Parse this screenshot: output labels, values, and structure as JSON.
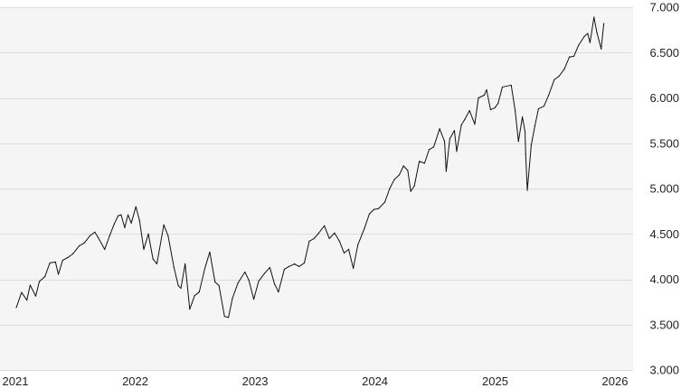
{
  "chart_data": {
    "type": "line",
    "title": "",
    "xlabel": "",
    "ylabel": "",
    "x_ticks": [
      "2021",
      "2022",
      "2023",
      "2024",
      "2025",
      "2026"
    ],
    "y_ticks": [
      "3.000",
      "3.500",
      "4.000",
      "4.500",
      "5.000",
      "5.500",
      "6.000",
      "6.500",
      "7.000"
    ],
    "ylim": [
      3000,
      7000
    ],
    "xlim": [
      "2021-01-01",
      "2026-01-31"
    ],
    "grid": true,
    "y_axis_side": "right",
    "colors": {
      "line": "#111111",
      "plot_background": "#f5f5f5",
      "grid": "#dcdcdc",
      "text": "#222222"
    },
    "series": [
      {
        "x": [
          "2021-01-04",
          "2021-01-20",
          "2021-02-05",
          "2021-02-15",
          "2021-03-04",
          "2021-03-15",
          "2021-04-01",
          "2021-04-16",
          "2021-05-03",
          "2021-05-12",
          "2021-05-25",
          "2021-06-10",
          "2021-06-25",
          "2021-07-15",
          "2021-07-30",
          "2021-08-16",
          "2021-08-31",
          "2021-09-10",
          "2021-09-30",
          "2021-10-15",
          "2021-10-29",
          "2021-11-10",
          "2021-11-19",
          "2021-11-30",
          "2021-12-10",
          "2021-12-20",
          "2022-01-03",
          "2022-01-14",
          "2022-01-27",
          "2022-02-10",
          "2022-02-24",
          "2022-03-08",
          "2022-03-29",
          "2022-04-11",
          "2022-04-29",
          "2022-05-12",
          "2022-05-20",
          "2022-06-02",
          "2022-06-16",
          "2022-07-01",
          "2022-07-15",
          "2022-08-01",
          "2022-08-16",
          "2022-09-01",
          "2022-09-13",
          "2022-09-30",
          "2022-10-12",
          "2022-10-24",
          "2022-11-10",
          "2022-12-01",
          "2022-12-13",
          "2022-12-28",
          "2023-01-12",
          "2023-01-31",
          "2023-02-15",
          "2023-03-01",
          "2023-03-13",
          "2023-03-31",
          "2023-04-14",
          "2023-05-01",
          "2023-05-15",
          "2023-05-31",
          "2023-06-15",
          "2023-06-30",
          "2023-07-14",
          "2023-07-31",
          "2023-08-15",
          "2023-08-31",
          "2023-09-15",
          "2023-09-29",
          "2023-10-13",
          "2023-10-27",
          "2023-11-10",
          "2023-11-30",
          "2023-12-15",
          "2023-12-29",
          "2024-01-12",
          "2024-01-31",
          "2024-02-15",
          "2024-02-29",
          "2024-03-15",
          "2024-03-28",
          "2024-04-10",
          "2024-04-19",
          "2024-04-30",
          "2024-05-15",
          "2024-05-31",
          "2024-06-14",
          "2024-06-28",
          "2024-07-16",
          "2024-07-31",
          "2024-08-05",
          "2024-08-16",
          "2024-08-30",
          "2024-09-06",
          "2024-09-20",
          "2024-09-30",
          "2024-10-15",
          "2024-10-31",
          "2024-11-11",
          "2024-11-29",
          "2024-12-06",
          "2024-12-18",
          "2024-12-31",
          "2025-01-10",
          "2025-01-23",
          "2025-02-19",
          "2025-03-03",
          "2025-03-13",
          "2025-03-25",
          "2025-04-02",
          "2025-04-04",
          "2025-04-08",
          "2025-04-09",
          "2025-04-21",
          "2025-05-02",
          "2025-05-13",
          "2025-05-30",
          "2025-06-13",
          "2025-06-30",
          "2025-07-15",
          "2025-07-31",
          "2025-08-15",
          "2025-08-29",
          "2025-09-12",
          "2025-09-30",
          "2025-10-10",
          "2025-10-17",
          "2025-10-29",
          "2025-11-07",
          "2025-11-20",
          "2025-11-28"
        ],
        "values": [
          3690,
          3855,
          3770,
          3935,
          3815,
          3975,
          4030,
          4180,
          4190,
          4055,
          4210,
          4240,
          4280,
          4370,
          4400,
          4480,
          4520,
          4460,
          4330,
          4480,
          4610,
          4700,
          4710,
          4570,
          4710,
          4620,
          4800,
          4650,
          4330,
          4500,
          4225,
          4170,
          4600,
          4480,
          4130,
          3930,
          3900,
          4170,
          3670,
          3820,
          3860,
          4120,
          4300,
          3970,
          3930,
          3590,
          3580,
          3790,
          3960,
          4080,
          3990,
          3780,
          3980,
          4070,
          4130,
          3950,
          3860,
          4110,
          4140,
          4170,
          4140,
          4180,
          4420,
          4450,
          4510,
          4590,
          4450,
          4510,
          4420,
          4290,
          4330,
          4120,
          4380,
          4560,
          4720,
          4770,
          4780,
          4850,
          5000,
          5100,
          5150,
          5250,
          5200,
          4970,
          5030,
          5300,
          5280,
          5430,
          5460,
          5660,
          5520,
          5190,
          5550,
          5640,
          5410,
          5700,
          5760,
          5860,
          5710,
          6000,
          6030,
          6090,
          5870,
          5890,
          5940,
          6120,
          6140,
          5860,
          5520,
          5790,
          5630,
          5380,
          5060,
          4980,
          5480,
          5690,
          5880,
          5910,
          6030,
          6200,
          6240,
          6320,
          6450,
          6460,
          6580,
          6680,
          6710,
          6610,
          6890,
          6720,
          6540,
          6820
        ]
      }
    ]
  }
}
